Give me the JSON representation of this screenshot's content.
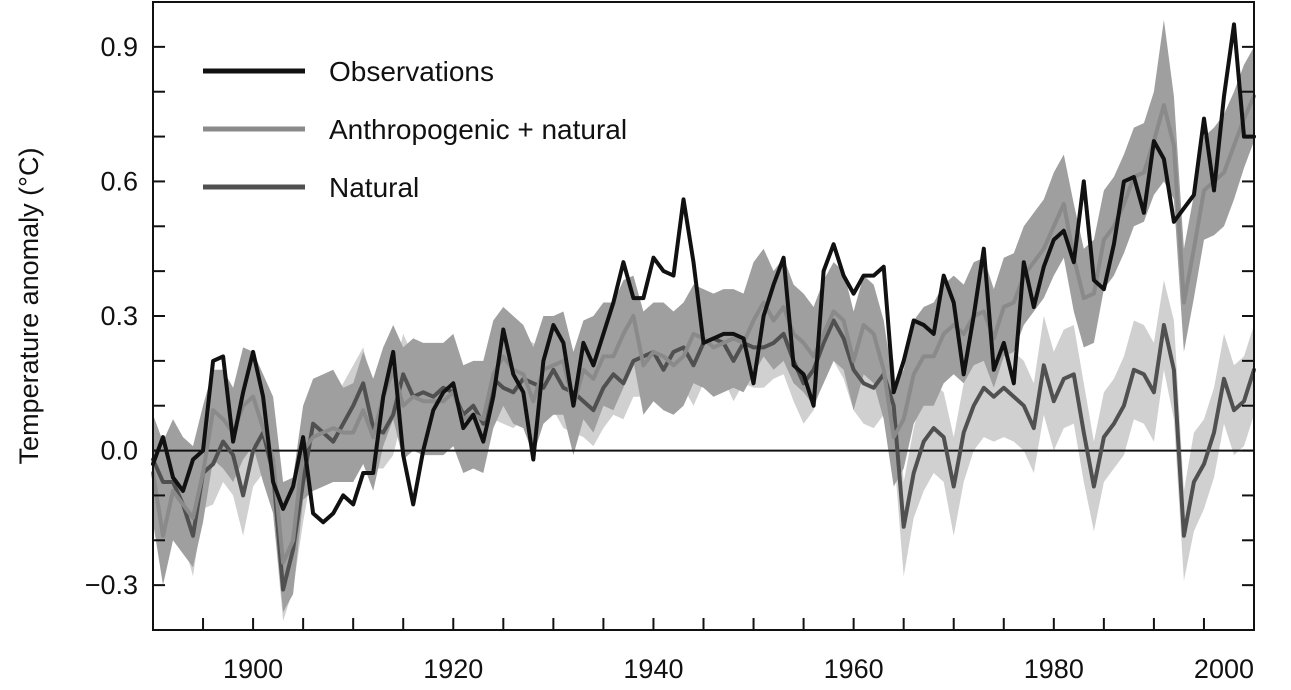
{
  "chart_data": {
    "type": "line",
    "ylabel": "Temperature anomaly (°C)",
    "xlim": [
      1890,
      2000
    ],
    "ylim": [
      -0.4,
      1.0
    ],
    "x_ticks": [
      1900,
      1920,
      1940,
      1960,
      1980,
      2000
    ],
    "y_ticks": [
      -0.3,
      0.0,
      0.3,
      0.6,
      0.9
    ],
    "y_tick_labels": [
      "−0.3",
      "0.0",
      "0.3",
      "0.6",
      "0.9"
    ],
    "legend_position": "top-left",
    "zero_line": true,
    "x": [
      1890,
      1891,
      1892,
      1893,
      1894,
      1895,
      1896,
      1897,
      1898,
      1899,
      1900,
      1901,
      1902,
      1903,
      1904,
      1905,
      1906,
      1907,
      1908,
      1909,
      1910,
      1911,
      1912,
      1913,
      1914,
      1915,
      1916,
      1917,
      1918,
      1919,
      1920,
      1921,
      1922,
      1923,
      1924,
      1925,
      1926,
      1927,
      1928,
      1929,
      1930,
      1931,
      1932,
      1933,
      1934,
      1935,
      1936,
      1937,
      1938,
      1939,
      1940,
      1941,
      1942,
      1943,
      1944,
      1945,
      1946,
      1947,
      1948,
      1949,
      1950,
      1951,
      1952,
      1953,
      1954,
      1955,
      1956,
      1957,
      1958,
      1959,
      1960,
      1961,
      1962,
      1963,
      1964,
      1965,
      1966,
      1967,
      1968,
      1969,
      1970,
      1971,
      1972,
      1973,
      1974,
      1975,
      1976,
      1977,
      1978,
      1979,
      1980,
      1981,
      1982,
      1983,
      1984,
      1985,
      1986,
      1987,
      1988,
      1989,
      1990,
      1991,
      1992,
      1993,
      1994,
      1995,
      1996,
      1997,
      1998,
      1999,
      2000
    ],
    "series": [
      {
        "name": "Observations",
        "color": "#111111",
        "values": [
          -0.03,
          0.03,
          -0.06,
          -0.09,
          -0.02,
          0.0,
          0.2,
          0.21,
          0.02,
          0.13,
          0.22,
          0.12,
          -0.07,
          -0.13,
          -0.08,
          0.03,
          -0.14,
          -0.16,
          -0.14,
          -0.1,
          -0.12,
          -0.05,
          -0.05,
          0.12,
          0.22,
          -0.01,
          -0.12,
          0.0,
          0.09,
          0.13,
          0.15,
          0.05,
          0.08,
          0.02,
          0.12,
          0.27,
          0.17,
          0.13,
          -0.02,
          0.2,
          0.28,
          0.24,
          0.1,
          0.24,
          0.19,
          0.26,
          0.33,
          0.42,
          0.34,
          0.34,
          0.43,
          0.4,
          0.39,
          0.56,
          0.42,
          0.24,
          0.25,
          0.26,
          0.26,
          0.25,
          0.15,
          0.3,
          0.37,
          0.43,
          0.19,
          0.17,
          0.1,
          0.4,
          0.46,
          0.39,
          0.35,
          0.39,
          0.39,
          0.41,
          0.13,
          0.2,
          0.29,
          0.28,
          0.26,
          0.39,
          0.33,
          0.17,
          0.3,
          0.45,
          0.18,
          0.24,
          0.15,
          0.42,
          0.32,
          0.41,
          0.47,
          0.49,
          0.42,
          0.6,
          0.38,
          0.36,
          0.46,
          0.6,
          0.61,
          0.53,
          0.69,
          0.65,
          0.51,
          0.54,
          0.57,
          0.74,
          0.58,
          0.79,
          0.95,
          0.7,
          0.7
        ]
      },
      {
        "name": "Anthropogenic + natural",
        "color": "#8a8a8a",
        "values": [
          -0.05,
          -0.19,
          -0.09,
          -0.12,
          -0.15,
          -0.05,
          0.09,
          0.07,
          0.04,
          0.1,
          0.12,
          0.05,
          -0.02,
          -0.25,
          -0.2,
          0.0,
          0.03,
          0.04,
          0.05,
          0.04,
          0.04,
          0.09,
          0.03,
          0.12,
          0.18,
          0.1,
          0.12,
          0.11,
          0.11,
          0.11,
          0.13,
          0.07,
          0.08,
          0.07,
          0.17,
          0.21,
          0.18,
          0.17,
          0.11,
          0.18,
          0.19,
          0.2,
          0.1,
          0.18,
          0.16,
          0.21,
          0.21,
          0.26,
          0.3,
          0.19,
          0.22,
          0.21,
          0.19,
          0.21,
          0.26,
          0.25,
          0.23,
          0.24,
          0.25,
          0.24,
          0.29,
          0.33,
          0.29,
          0.32,
          0.26,
          0.24,
          0.21,
          0.26,
          0.31,
          0.29,
          0.2,
          0.28,
          0.26,
          0.18,
          0.03,
          0.07,
          0.17,
          0.21,
          0.21,
          0.26,
          0.28,
          0.26,
          0.3,
          0.31,
          0.25,
          0.32,
          0.33,
          0.39,
          0.42,
          0.45,
          0.5,
          0.55,
          0.43,
          0.34,
          0.35,
          0.47,
          0.5,
          0.55,
          0.61,
          0.62,
          0.69,
          0.77,
          0.68,
          0.33,
          0.45,
          0.58,
          0.6,
          0.62,
          0.68,
          0.74,
          0.79
        ],
        "band_upper": [
          0.08,
          0.02,
          0.07,
          0.03,
          0.01,
          0.1,
          0.18,
          0.18,
          0.14,
          0.23,
          0.22,
          0.17,
          0.12,
          -0.07,
          -0.06,
          0.1,
          0.16,
          0.17,
          0.18,
          0.14,
          0.15,
          0.22,
          0.16,
          0.23,
          0.28,
          0.23,
          0.25,
          0.24,
          0.24,
          0.24,
          0.26,
          0.19,
          0.2,
          0.2,
          0.29,
          0.32,
          0.3,
          0.28,
          0.23,
          0.3,
          0.3,
          0.31,
          0.22,
          0.29,
          0.3,
          0.33,
          0.33,
          0.38,
          0.39,
          0.31,
          0.33,
          0.33,
          0.31,
          0.33,
          0.37,
          0.36,
          0.35,
          0.36,
          0.36,
          0.35,
          0.42,
          0.45,
          0.4,
          0.43,
          0.37,
          0.35,
          0.32,
          0.38,
          0.42,
          0.4,
          0.31,
          0.39,
          0.37,
          0.29,
          0.14,
          0.18,
          0.29,
          0.32,
          0.33,
          0.37,
          0.39,
          0.37,
          0.42,
          0.43,
          0.36,
          0.43,
          0.44,
          0.5,
          0.53,
          0.56,
          0.62,
          0.66,
          0.55,
          0.45,
          0.47,
          0.58,
          0.61,
          0.66,
          0.72,
          0.73,
          0.8,
          0.96,
          0.79,
          0.45,
          0.57,
          0.7,
          0.72,
          0.75,
          0.8,
          0.86,
          0.9
        ],
        "band_lower": [
          -0.16,
          -0.3,
          -0.2,
          -0.23,
          -0.26,
          -0.16,
          -0.02,
          -0.04,
          -0.07,
          -0.02,
          0.01,
          -0.07,
          -0.14,
          -0.36,
          -0.32,
          -0.11,
          -0.09,
          -0.08,
          -0.07,
          -0.07,
          -0.07,
          -0.03,
          -0.09,
          0.01,
          0.07,
          -0.02,
          0.0,
          -0.01,
          -0.01,
          -0.01,
          0.01,
          -0.05,
          -0.04,
          -0.05,
          0.05,
          0.1,
          0.06,
          0.05,
          -0.01,
          0.06,
          0.08,
          0.08,
          -0.01,
          0.07,
          0.04,
          0.1,
          0.09,
          0.14,
          0.2,
          0.08,
          0.11,
          0.09,
          0.08,
          0.1,
          0.15,
          0.14,
          0.12,
          0.13,
          0.14,
          0.13,
          0.17,
          0.21,
          0.18,
          0.2,
          0.15,
          0.13,
          0.1,
          0.15,
          0.2,
          0.18,
          0.09,
          0.17,
          0.15,
          0.07,
          -0.08,
          -0.04,
          0.06,
          0.1,
          0.1,
          0.15,
          0.17,
          0.15,
          0.19,
          0.2,
          0.14,
          0.21,
          0.22,
          0.28,
          0.31,
          0.34,
          0.39,
          0.43,
          0.31,
          0.23,
          0.24,
          0.36,
          0.39,
          0.44,
          0.5,
          0.51,
          0.57,
          0.6,
          0.56,
          0.22,
          0.34,
          0.47,
          0.48,
          0.5,
          0.56,
          0.63,
          0.69
        ]
      },
      {
        "name": "Natural",
        "color": "#505050",
        "values": [
          -0.02,
          -0.07,
          -0.07,
          -0.12,
          -0.19,
          -0.05,
          -0.03,
          0.02,
          -0.01,
          -0.1,
          0.0,
          0.04,
          -0.05,
          -0.31,
          -0.22,
          -0.07,
          0.06,
          0.04,
          0.02,
          0.06,
          0.1,
          0.15,
          0.05,
          0.04,
          0.08,
          0.17,
          0.12,
          0.13,
          0.12,
          0.14,
          0.13,
          0.08,
          0.1,
          0.06,
          0.16,
          0.14,
          0.13,
          0.16,
          0.15,
          0.14,
          0.18,
          0.14,
          0.13,
          0.11,
          0.09,
          0.14,
          0.17,
          0.15,
          0.2,
          0.21,
          0.22,
          0.18,
          0.22,
          0.23,
          0.19,
          0.24,
          0.25,
          0.24,
          0.2,
          0.24,
          0.23,
          0.23,
          0.24,
          0.26,
          0.2,
          0.15,
          0.18,
          0.24,
          0.29,
          0.25,
          0.18,
          0.15,
          0.14,
          0.17,
          0.1,
          -0.17,
          -0.05,
          0.02,
          0.05,
          0.03,
          -0.08,
          0.04,
          0.1,
          0.14,
          0.12,
          0.14,
          0.12,
          0.1,
          0.05,
          0.19,
          0.11,
          0.16,
          0.17,
          0.04,
          -0.08,
          0.03,
          0.06,
          0.1,
          0.18,
          0.17,
          0.13,
          0.28,
          0.18,
          -0.19,
          -0.07,
          -0.03,
          0.04,
          0.16,
          0.09,
          0.11,
          0.18
        ],
        "band_upper": [
          0.06,
          0.01,
          0.02,
          -0.04,
          -0.1,
          0.03,
          0.06,
          0.11,
          0.08,
          -0.01,
          0.08,
          0.13,
          0.04,
          -0.2,
          -0.13,
          0.02,
          0.15,
          0.13,
          0.1,
          0.15,
          0.19,
          0.23,
          0.14,
          0.12,
          0.17,
          0.26,
          0.21,
          0.2,
          0.2,
          0.22,
          0.21,
          0.16,
          0.18,
          0.14,
          0.25,
          0.22,
          0.21,
          0.25,
          0.24,
          0.22,
          0.27,
          0.23,
          0.22,
          0.19,
          0.17,
          0.23,
          0.26,
          0.23,
          0.28,
          0.3,
          0.31,
          0.27,
          0.31,
          0.32,
          0.28,
          0.33,
          0.34,
          0.32,
          0.29,
          0.33,
          0.32,
          0.32,
          0.32,
          0.35,
          0.29,
          0.24,
          0.27,
          0.32,
          0.38,
          0.34,
          0.27,
          0.24,
          0.23,
          0.26,
          0.2,
          -0.07,
          0.05,
          0.13,
          0.15,
          0.13,
          0.03,
          0.15,
          0.2,
          0.25,
          0.22,
          0.25,
          0.22,
          0.2,
          0.15,
          0.3,
          0.22,
          0.27,
          0.28,
          0.15,
          0.02,
          0.13,
          0.16,
          0.21,
          0.29,
          0.28,
          0.24,
          0.38,
          0.29,
          -0.09,
          0.04,
          0.07,
          0.14,
          0.26,
          0.19,
          0.21,
          0.28
        ],
        "band_lower": [
          -0.1,
          -0.15,
          -0.16,
          -0.2,
          -0.28,
          -0.13,
          -0.12,
          -0.07,
          -0.1,
          -0.19,
          -0.08,
          -0.05,
          -0.14,
          -0.38,
          -0.31,
          -0.16,
          -0.03,
          -0.05,
          -0.06,
          -0.03,
          0.01,
          0.07,
          -0.04,
          -0.04,
          -0.01,
          0.08,
          0.03,
          0.06,
          0.04,
          0.06,
          0.05,
          0.0,
          0.02,
          -0.02,
          0.07,
          0.06,
          0.05,
          0.07,
          0.06,
          0.06,
          0.09,
          0.05,
          0.04,
          0.03,
          0.01,
          0.05,
          0.08,
          0.07,
          0.12,
          0.12,
          0.13,
          0.09,
          0.13,
          0.14,
          0.1,
          0.15,
          0.16,
          0.16,
          0.11,
          0.15,
          0.14,
          0.14,
          0.16,
          0.17,
          0.11,
          0.06,
          0.09,
          0.16,
          0.2,
          0.16,
          0.09,
          0.06,
          0.05,
          0.08,
          0.0,
          -0.28,
          -0.15,
          -0.09,
          -0.05,
          -0.07,
          -0.19,
          -0.07,
          0.0,
          0.03,
          0.02,
          0.03,
          0.02,
          0.0,
          -0.05,
          0.08,
          0.0,
          0.05,
          0.06,
          -0.07,
          -0.18,
          -0.07,
          -0.04,
          -0.01,
          0.07,
          0.06,
          0.02,
          0.18,
          0.07,
          -0.29,
          -0.18,
          -0.13,
          -0.06,
          0.06,
          -0.01,
          0.01,
          0.08
        ]
      }
    ]
  }
}
